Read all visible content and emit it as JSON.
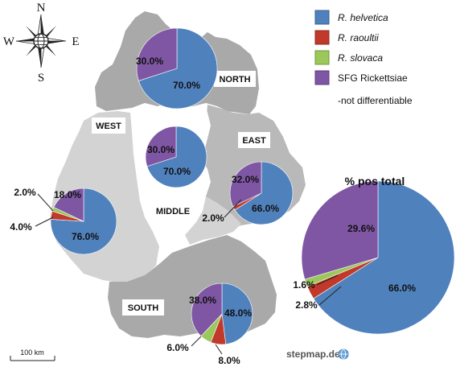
{
  "compass": {
    "n": "N",
    "s": "S",
    "e": "E",
    "w": "W"
  },
  "legend": [
    {
      "label": "R. helvetica",
      "italic": true,
      "color": "#4f81bd"
    },
    {
      "label": "R. raoultii",
      "italic": true,
      "color": "#c0392b"
    },
    {
      "label": "R. slovaca",
      "italic": true,
      "color": "#9bc75b"
    },
    {
      "label": "SFG Rickettsiae",
      "italic": false,
      "color": "#7f56a3"
    },
    {
      "label": "-not differentiable",
      "italic": false,
      "color": null
    }
  ],
  "regions": {
    "north": "NORTH",
    "east": "EAST",
    "west": "WEST",
    "middle": "MIDDLE",
    "south": "SOUTH"
  },
  "chart_data": [
    {
      "type": "pie",
      "title": "NORTH",
      "categories": [
        "R. helvetica",
        "R. raoultii",
        "R. slovaca",
        "SFG Rickettsiae -not differentiable"
      ],
      "values": [
        70.0,
        0,
        0,
        30.0
      ],
      "labels": [
        "70.0%",
        "30.0%"
      ]
    },
    {
      "type": "pie",
      "title": "MIDDLE",
      "categories": [
        "R. helvetica",
        "R. raoultii",
        "R. slovaca",
        "SFG Rickettsiae -not differentiable"
      ],
      "values": [
        70.0,
        0,
        0,
        30.0
      ],
      "labels": [
        "70.0%",
        "30.0%"
      ]
    },
    {
      "type": "pie",
      "title": "EAST",
      "categories": [
        "R. helvetica",
        "R. raoultii",
        "R. slovaca",
        "SFG Rickettsiae -not differentiable"
      ],
      "values": [
        66.0,
        2.0,
        0,
        32.0
      ],
      "labels": [
        "66.0%",
        "2.0%",
        "32.0%"
      ]
    },
    {
      "type": "pie",
      "title": "WEST",
      "categories": [
        "R. helvetica",
        "R. raoultii",
        "R. slovaca",
        "SFG Rickettsiae -not differentiable"
      ],
      "values": [
        76.0,
        4.0,
        2.0,
        18.0
      ],
      "labels": [
        "76.0%",
        "4.0%",
        "2.0%",
        "18.0%"
      ]
    },
    {
      "type": "pie",
      "title": "SOUTH",
      "categories": [
        "R. helvetica",
        "R. raoultii",
        "R. slovaca",
        "SFG Rickettsiae -not differentiable"
      ],
      "values": [
        48.0,
        8.0,
        6.0,
        38.0
      ],
      "labels": [
        "48.0%",
        "8.0%",
        "6.0%",
        "38.0%"
      ]
    },
    {
      "type": "pie",
      "title": "% pos total",
      "categories": [
        "R. helvetica",
        "R. raoultii",
        "R. slovaca",
        "SFG Rickettsiae -not differentiable"
      ],
      "values": [
        66.0,
        2.8,
        1.6,
        29.6
      ],
      "labels": [
        "66.0%",
        "2.8%",
        "1.6%",
        "29.6%"
      ]
    }
  ],
  "scale_bar": "100 km",
  "attribution": "stepmap.de"
}
